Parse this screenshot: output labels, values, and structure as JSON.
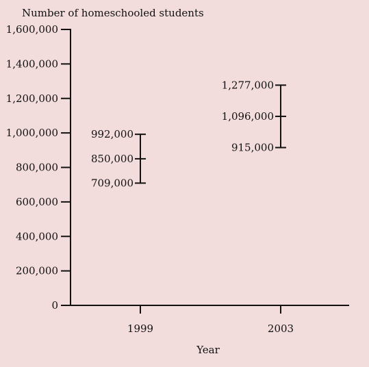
{
  "chart_data": {
    "type": "error_range",
    "ylabel": "Number of homeschooled students",
    "xlabel": "Year",
    "categories": [
      "1999",
      "2003"
    ],
    "ylim": [
      0,
      1600000
    ],
    "yticks": [
      0,
      200000,
      400000,
      600000,
      800000,
      1000000,
      1200000,
      1400000,
      1600000
    ],
    "ytick_labels": [
      "0",
      "200,000",
      "400,000",
      "600,000",
      "800,000",
      "1,000,000",
      "1,200,000",
      "1,400,000",
      "1,600,000"
    ],
    "series": [
      {
        "category": "1999",
        "low": 709000,
        "estimate": 850000,
        "high": 992000,
        "labels": {
          "low": "709,000",
          "estimate": "850,000",
          "high": "992,000"
        }
      },
      {
        "category": "2003",
        "low": 915000,
        "estimate": 1096000,
        "high": 1277000,
        "labels": {
          "low": "915,000",
          "estimate": "1,096,000",
          "high": "1,277,000"
        }
      }
    ],
    "grid": false,
    "legend": "none"
  },
  "colors": {
    "panel_background": "#f2dcdc",
    "ink": "#111111"
  }
}
